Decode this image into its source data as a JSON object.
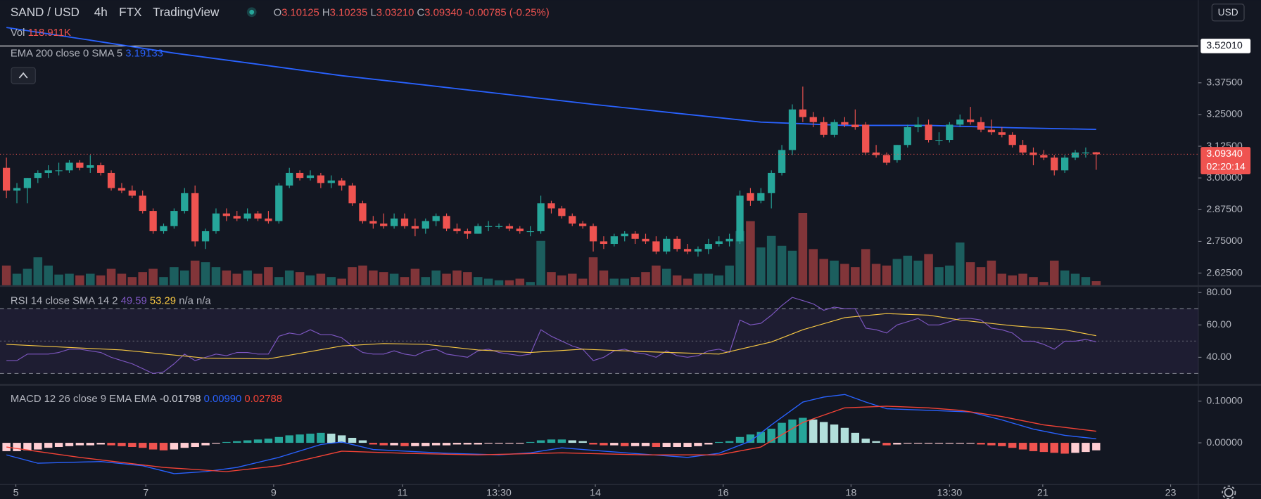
{
  "header": {
    "symbol": "SAND / USD",
    "interval": "4h",
    "exchange": "FTX",
    "source": "TradingView",
    "ohlc": [
      {
        "key": "O",
        "value": "3.10125"
      },
      {
        "key": "H",
        "value": "3.10235"
      },
      {
        "key": "L",
        "value": "3.03210"
      },
      {
        "key": "C",
        "value": "3.09340"
      }
    ],
    "change": "-0.00785 (-0.25%)",
    "currency": "USD"
  },
  "chart_data": [
    {
      "type": "candlestick",
      "open": [
        3.04,
        2.95,
        2.96,
        3.0,
        3.02,
        3.03,
        3.03,
        3.06,
        3.04,
        3.05,
        3.02,
        2.96,
        2.95,
        2.93,
        2.87,
        2.79,
        2.81,
        2.87,
        2.94,
        2.75,
        2.79,
        2.86,
        2.85,
        2.84,
        2.86,
        2.84,
        2.83,
        2.97,
        3.02,
        3.0,
        3.01,
        2.98,
        2.99,
        2.97,
        2.9,
        2.83,
        2.82,
        2.81,
        2.84,
        2.81,
        2.8,
        2.83,
        2.85,
        2.8,
        2.79,
        2.78,
        2.81,
        2.81,
        2.81,
        2.8,
        2.79,
        2.79,
        2.9,
        2.88,
        2.85,
        2.82,
        2.81,
        2.75,
        2.74,
        2.77,
        2.78,
        2.76,
        2.75,
        2.71,
        2.76,
        2.72,
        2.71,
        2.72,
        2.74,
        2.75,
        2.75,
        2.94,
        2.91,
        2.94,
        3.02,
        3.11,
        3.27,
        3.24,
        3.22,
        3.17,
        3.22,
        3.21,
        3.21,
        3.1,
        3.09,
        3.07,
        3.13,
        3.2,
        3.21,
        3.15,
        3.15,
        3.21,
        3.23,
        3.22,
        3.19,
        3.18,
        3.17,
        3.13,
        3.1,
        3.09,
        3.08,
        3.03,
        3.08,
        3.1,
        3.10125
      ],
      "high": [
        3.08,
        2.98,
        3.0,
        3.03,
        3.05,
        3.06,
        3.07,
        3.07,
        3.09,
        3.06,
        3.03,
        2.98,
        2.97,
        2.95,
        2.88,
        2.82,
        2.88,
        2.96,
        2.97,
        2.8,
        2.88,
        2.88,
        2.87,
        2.88,
        2.87,
        2.87,
        2.98,
        3.04,
        3.03,
        3.03,
        3.02,
        3.01,
        3.0,
        2.98,
        2.91,
        2.85,
        2.86,
        2.86,
        2.86,
        2.84,
        2.84,
        2.86,
        2.86,
        2.82,
        2.8,
        2.82,
        2.83,
        2.82,
        2.82,
        2.81,
        2.81,
        2.93,
        2.91,
        2.89,
        2.86,
        2.83,
        2.82,
        2.77,
        2.78,
        2.79,
        2.79,
        2.78,
        2.77,
        2.77,
        2.77,
        2.74,
        2.73,
        2.76,
        2.77,
        2.78,
        2.95,
        2.96,
        2.96,
        3.03,
        3.13,
        3.29,
        3.36,
        3.26,
        3.24,
        3.23,
        3.24,
        3.27,
        3.22,
        3.13,
        3.1,
        3.13,
        3.21,
        3.24,
        3.23,
        3.18,
        3.22,
        3.25,
        3.28,
        3.24,
        3.23,
        3.2,
        3.18,
        3.15,
        3.12,
        3.11,
        3.09,
        3.09,
        3.11,
        3.12,
        3.10235
      ],
      "low": [
        2.92,
        2.9,
        2.9,
        2.98,
        3.0,
        3.01,
        3.02,
        3.03,
        3.02,
        3.01,
        2.95,
        2.94,
        2.92,
        2.86,
        2.78,
        2.78,
        2.8,
        2.86,
        2.73,
        2.72,
        2.78,
        2.83,
        2.83,
        2.83,
        2.83,
        2.82,
        2.82,
        2.96,
        2.99,
        2.99,
        2.96,
        2.96,
        2.95,
        2.89,
        2.82,
        2.8,
        2.8,
        2.8,
        2.8,
        2.77,
        2.78,
        2.81,
        2.79,
        2.78,
        2.76,
        2.78,
        2.79,
        2.8,
        2.79,
        2.78,
        2.77,
        2.78,
        2.86,
        2.84,
        2.81,
        2.8,
        2.71,
        2.72,
        2.73,
        2.75,
        2.74,
        2.74,
        2.7,
        2.7,
        2.71,
        2.7,
        2.69,
        2.7,
        2.73,
        2.73,
        2.74,
        2.89,
        2.9,
        2.88,
        3.01,
        3.09,
        3.22,
        3.2,
        3.16,
        3.16,
        3.2,
        3.19,
        3.09,
        3.08,
        3.05,
        3.06,
        3.12,
        3.18,
        3.14,
        3.13,
        3.14,
        3.2,
        3.21,
        3.18,
        3.17,
        3.16,
        3.12,
        3.09,
        3.05,
        3.07,
        3.01,
        3.02,
        3.07,
        3.08,
        3.0321
      ],
      "close": [
        2.95,
        2.96,
        3.0,
        3.02,
        3.03,
        3.03,
        3.06,
        3.04,
        3.05,
        3.02,
        2.96,
        2.95,
        2.93,
        2.87,
        2.79,
        2.81,
        2.87,
        2.94,
        2.75,
        2.79,
        2.86,
        2.85,
        2.84,
        2.86,
        2.84,
        2.83,
        2.97,
        3.02,
        3.0,
        3.01,
        2.98,
        2.99,
        2.97,
        2.9,
        2.83,
        2.82,
        2.81,
        2.84,
        2.81,
        2.8,
        2.83,
        2.85,
        2.8,
        2.79,
        2.78,
        2.81,
        2.81,
        2.81,
        2.8,
        2.79,
        2.79,
        2.9,
        2.88,
        2.85,
        2.82,
        2.81,
        2.75,
        2.74,
        2.77,
        2.78,
        2.76,
        2.75,
        2.71,
        2.76,
        2.72,
        2.71,
        2.72,
        2.74,
        2.75,
        2.76,
        2.93,
        2.91,
        2.94,
        3.02,
        3.11,
        3.27,
        3.24,
        3.22,
        3.17,
        3.22,
        3.21,
        3.2,
        3.1,
        3.09,
        3.06,
        3.13,
        3.2,
        3.21,
        3.15,
        3.15,
        3.21,
        3.23,
        3.22,
        3.19,
        3.18,
        3.17,
        3.13,
        3.1,
        3.09,
        3.08,
        3.03,
        3.08,
        3.1,
        3.1,
        3.0934
      ],
      "up_color": "#26a69a",
      "down_color": "#ef5350",
      "volume": {
        "name": "Vol",
        "value_label": "118.911K",
        "values": [
          576,
          336,
          480,
          816,
          576,
          312,
          336,
          288,
          336,
          288,
          480,
          336,
          240,
          384,
          480,
          240,
          528,
          432,
          720,
          672,
          528,
          432,
          336,
          432,
          336,
          528,
          240,
          432,
          384,
          288,
          336,
          240,
          192,
          528,
          576,
          432,
          384,
          336,
          240,
          480,
          240,
          432,
          336,
          432,
          384,
          240,
          192,
          144,
          144,
          192,
          96,
          1296,
          384,
          288,
          336,
          192,
          816,
          432,
          192,
          192,
          240,
          384,
          576,
          480,
          288,
          192,
          336,
          336,
          288,
          576,
          1584,
          1872,
          1104,
          1440,
          1152,
          1008,
          2112,
          1056,
          768,
          720,
          624,
          528,
          1056,
          624,
          576,
          768,
          864,
          720,
          912,
          528,
          576,
          1248,
          672,
          528,
          720,
          336,
          288,
          336,
          240,
          96,
          720,
          432,
          336,
          240,
          118.911
        ]
      },
      "ema": {
        "name": "EMA 200 close 0 SMA 5",
        "color": "#2962ff",
        "value_label": "3.19133",
        "x": [
          0,
          8,
          16,
          24,
          32,
          40,
          48,
          56,
          64,
          72,
          80,
          88,
          96,
          104
        ],
        "values": [
          3.593,
          3.543,
          3.492,
          3.448,
          3.403,
          3.366,
          3.328,
          3.29,
          3.255,
          3.22,
          3.207,
          3.207,
          3.198,
          3.19133
        ]
      },
      "hline": {
        "value": 3.5201,
        "label": "3.52010",
        "color": "#ffffff"
      },
      "last_label": "3.09340",
      "countdown": "02:20:14",
      "ylim": [
        2.577,
        3.701
      ],
      "yticks": [
        {
          "value": 3.375,
          "label": "3.37500"
        },
        {
          "value": 3.25,
          "label": "3.25000"
        },
        {
          "value": 3.125,
          "label": "3.12500"
        },
        {
          "value": 3.0,
          "label": "3.00000"
        },
        {
          "value": 2.875,
          "label": "2.87500"
        },
        {
          "value": 2.75,
          "label": "2.75000"
        },
        {
          "value": 2.625,
          "label": "2.62500"
        }
      ],
      "xlim": [
        -0.614,
        113.74
      ],
      "xticks": [
        {
          "value": 0.9,
          "label": "5"
        },
        {
          "value": 13.3,
          "label": "7"
        },
        {
          "value": 25.5,
          "label": "9"
        },
        {
          "value": 37.8,
          "label": "11"
        },
        {
          "value": 47,
          "label": "13:30"
        },
        {
          "value": 56.2,
          "label": "14"
        },
        {
          "value": 68.4,
          "label": "16"
        },
        {
          "value": 80.6,
          "label": "18"
        },
        {
          "value": 90,
          "label": "13:30"
        },
        {
          "value": 98.9,
          "label": "21"
        },
        {
          "value": 111.1,
          "label": "23"
        }
      ]
    },
    {
      "type": "line",
      "title": "RSI 14 close SMA 14 2",
      "color": "#7e57c2",
      "value_label": "49.59",
      "extra_label": "n/a n/a",
      "values": [
        38,
        38,
        42,
        42,
        42,
        43,
        45,
        45,
        44,
        43,
        40,
        38,
        36,
        33,
        30,
        31,
        36,
        42,
        38,
        40,
        42,
        41,
        43,
        43,
        42,
        42,
        53,
        55,
        54,
        57,
        54,
        54,
        52,
        47,
        43,
        42,
        42,
        44,
        42,
        41,
        44,
        45,
        42,
        41,
        40,
        44,
        45,
        43,
        42,
        41,
        42,
        57,
        53,
        50,
        47,
        45,
        38,
        40,
        44,
        45,
        43,
        42,
        40,
        44,
        41,
        40,
        41,
        44,
        45,
        43,
        63,
        60,
        61,
        66,
        72,
        77,
        75,
        73,
        69,
        71,
        70,
        70,
        58,
        57,
        55,
        60,
        62,
        64,
        60,
        60,
        62,
        64,
        64,
        63,
        58,
        57,
        55,
        50,
        50,
        48,
        45,
        50,
        50,
        51,
        49.59
      ],
      "sma": {
        "color": "#f7c843",
        "value_label": "53.29",
        "x": [
          0,
          11,
          19,
          25,
          32,
          36,
          40,
          45,
          50,
          55,
          61,
          68,
          73,
          76,
          80,
          84,
          88,
          91,
          96,
          101,
          104
        ],
        "values": [
          48,
          44.5,
          39.5,
          39,
          47,
          48.5,
          48,
          44.5,
          43,
          45,
          43.5,
          42,
          49.5,
          57,
          64.5,
          67,
          66,
          63,
          59.5,
          57,
          53.29
        ]
      },
      "band": [
        30,
        70
      ],
      "midline": 50,
      "ylim": [
        23.5,
        83.5
      ],
      "yticks": [
        {
          "value": 80,
          "label": "80.00"
        },
        {
          "value": 60,
          "label": "60.00"
        },
        {
          "value": 40,
          "label": "40.00"
        }
      ]
    },
    {
      "type": "macd",
      "title": "MACD 12 26 close 9 EMA EMA",
      "histogram": {
        "value_label": "-0.01798",
        "colors": [
          "#26a69a",
          "#b2dfdb",
          "#ffcdd2",
          "#ef5350"
        ],
        "values": [
          -0.02,
          -0.02,
          -0.018,
          -0.016,
          -0.012,
          -0.01,
          -0.008,
          -0.006,
          -0.006,
          -0.004,
          -0.006,
          -0.008,
          -0.01,
          -0.012,
          -0.016,
          -0.018,
          -0.016,
          -0.012,
          -0.01,
          -0.006,
          -0.002,
          0.002,
          0.004,
          0.006,
          0.008,
          0.01,
          0.014,
          0.018,
          0.02,
          0.022,
          0.024,
          0.022,
          0.018,
          0.012,
          0.006,
          -0.004,
          -0.006,
          -0.006,
          -0.008,
          -0.008,
          -0.008,
          -0.006,
          -0.006,
          -0.004,
          -0.004,
          -0.004,
          -0.002,
          -0.002,
          -0.002,
          -0.002,
          0.002,
          0.006,
          0.008,
          0.008,
          0.006,
          0.004,
          -0.004,
          -0.006,
          -0.006,
          -0.008,
          -0.008,
          -0.008,
          -0.01,
          -0.01,
          -0.01,
          -0.01,
          -0.008,
          -0.004,
          0.002,
          0.004,
          0.014,
          0.02,
          0.026,
          0.034,
          0.048,
          0.056,
          0.06,
          0.056,
          0.05,
          0.044,
          0.036,
          0.024,
          0.01,
          0.004,
          -0.006,
          -0.004,
          -0.002,
          -0.002,
          -0.002,
          -0.002,
          -0.002,
          -0.002,
          -0.002,
          -0.004,
          -0.006,
          -0.008,
          -0.012,
          -0.016,
          -0.02,
          -0.022,
          -0.024,
          -0.026,
          -0.024,
          -0.022,
          -0.01798
        ]
      },
      "macd": {
        "color": "#2962ff",
        "value_label": "0.00990",
        "x": [
          0,
          3,
          9,
          13,
          16,
          19,
          22,
          26,
          30,
          32,
          35,
          42,
          47,
          50,
          53,
          57,
          65,
          68,
          71,
          73,
          76,
          78,
          80,
          82,
          84,
          88,
          92,
          95,
          98,
          101,
          104
        ],
        "values": [
          -0.029,
          -0.049,
          -0.045,
          -0.055,
          -0.074,
          -0.069,
          -0.059,
          -0.035,
          -0.004,
          0.002,
          -0.016,
          -0.025,
          -0.029,
          -0.024,
          -0.012,
          -0.02,
          -0.035,
          -0.025,
          0.004,
          0.043,
          0.098,
          0.11,
          0.116,
          0.098,
          0.082,
          0.078,
          0.074,
          0.055,
          0.033,
          0.018,
          0.0099
        ]
      },
      "signal": {
        "color": "#f44336",
        "value_label": "0.02788",
        "x": [
          0,
          7,
          15,
          21,
          26,
          32,
          38,
          45,
          53,
          61,
          68,
          72,
          76,
          80,
          84,
          88,
          91,
          95,
          99,
          104
        ],
        "values": [
          -0.01,
          -0.035,
          -0.059,
          -0.069,
          -0.055,
          -0.02,
          -0.025,
          -0.029,
          -0.024,
          -0.029,
          -0.029,
          -0.01,
          0.049,
          0.084,
          0.088,
          0.084,
          0.078,
          0.063,
          0.043,
          0.02788
        ]
      },
      "ylim": [
        -0.098,
        0.1373
      ],
      "yticks": [
        {
          "value": 0.1,
          "label": "0.10000"
        },
        {
          "value": 0,
          "label": "0.00000"
        }
      ]
    }
  ]
}
